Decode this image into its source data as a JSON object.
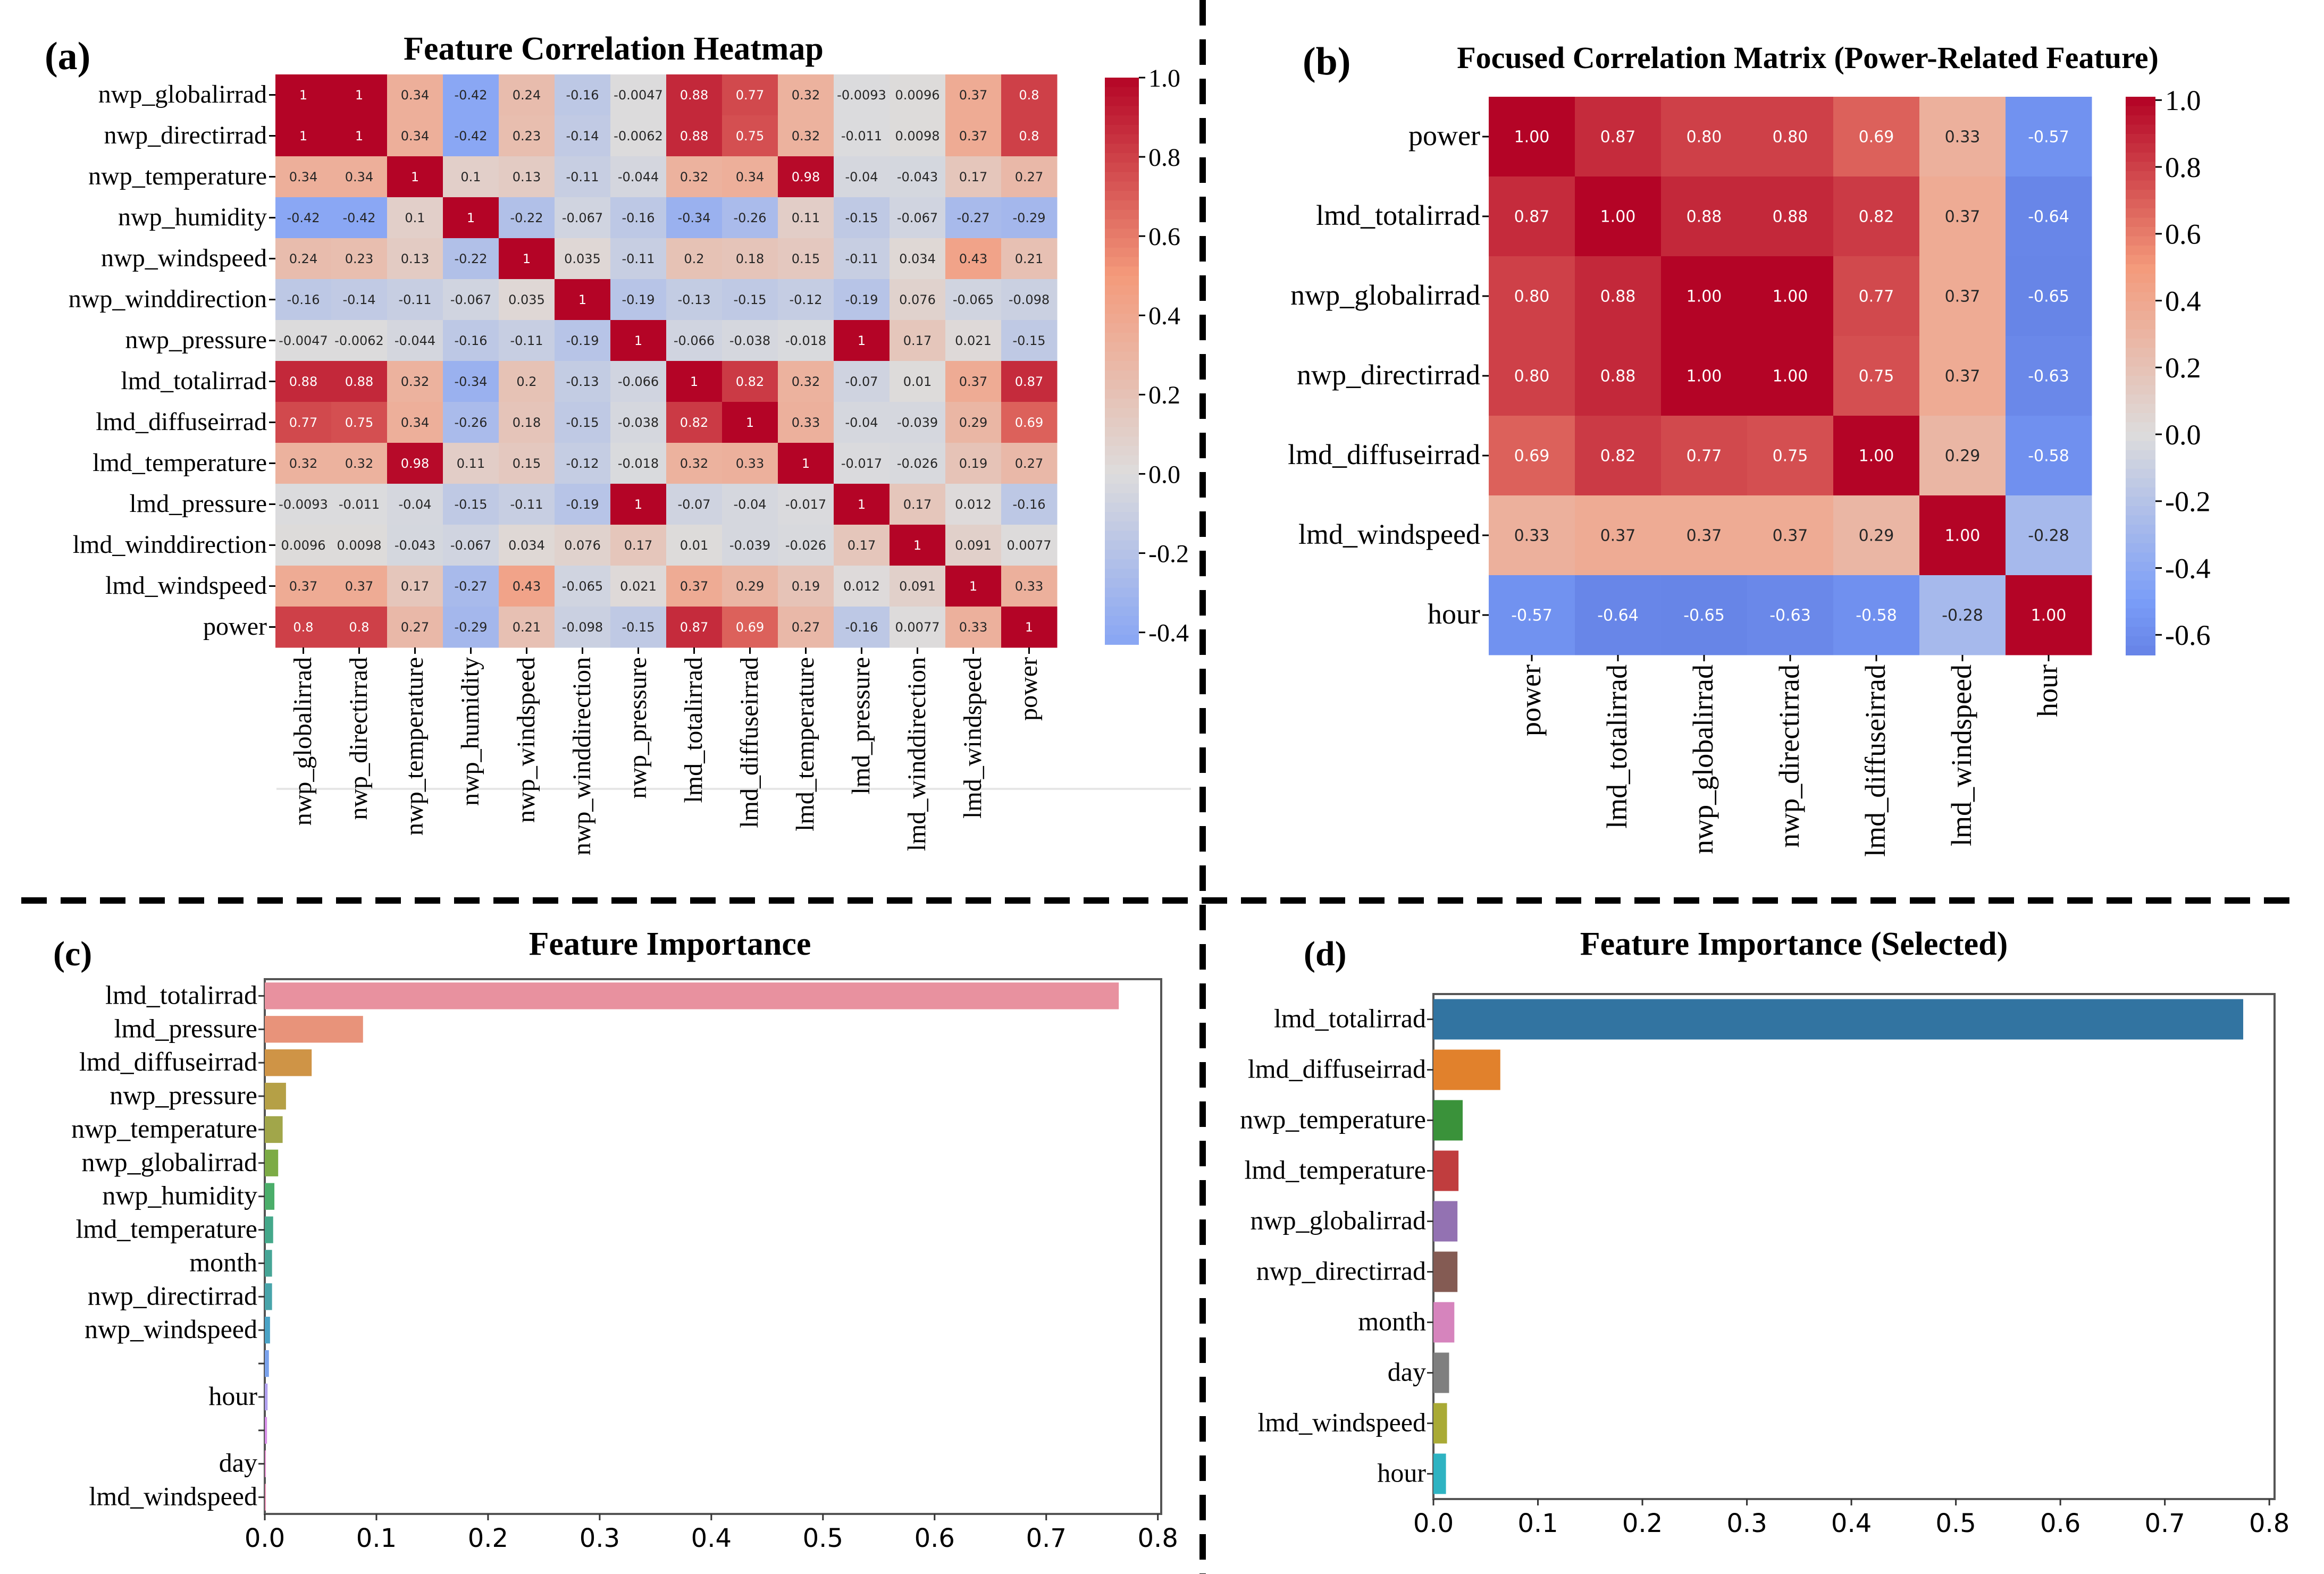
{
  "chart_data": [
    {
      "panel_label": "(a)",
      "type": "heatmap",
      "title": "Feature Correlation Heatmap",
      "rows": [
        "nwp_globalirrad",
        "nwp_directirrad",
        "nwp_temperature",
        "nwp_humidity",
        "nwp_windspeed",
        "nwp_winddirection",
        "nwp_pressure",
        "lmd_totalirrad",
        "lmd_diffuseirrad",
        "lmd_temperature",
        "lmd_pressure",
        "lmd_winddirection",
        "lmd_windspeed",
        "power"
      ],
      "cols": [
        "nwp_globalirrad",
        "nwp_directirrad",
        "nwp_temperature",
        "nwp_humidity",
        "nwp_windspeed",
        "nwp_winddirection",
        "nwp_pressure",
        "lmd_totalirrad",
        "lmd_diffuseirrad",
        "lmd_temperature",
        "lmd_pressure",
        "lmd_winddirection",
        "lmd_windspeed",
        "power"
      ],
      "values": [
        [
          "1",
          "1",
          "0.34",
          "-0.42",
          "0.24",
          "-0.16",
          "-0.0047",
          "0.88",
          "0.77",
          "0.32",
          "-0.0093",
          "0.0096",
          "0.37",
          "0.8"
        ],
        [
          "1",
          "1",
          "0.34",
          "-0.42",
          "0.23",
          "-0.14",
          "-0.0062",
          "0.88",
          "0.75",
          "0.32",
          "-0.011",
          "0.0098",
          "0.37",
          "0.8"
        ],
        [
          "0.34",
          "0.34",
          "1",
          "0.1",
          "0.13",
          "-0.11",
          "-0.044",
          "0.32",
          "0.34",
          "0.98",
          "-0.04",
          "-0.043",
          "0.17",
          "0.27"
        ],
        [
          "-0.42",
          "-0.42",
          "0.1",
          "1",
          "-0.22",
          "-0.067",
          "-0.16",
          "-0.34",
          "-0.26",
          "0.11",
          "-0.15",
          "-0.067",
          "-0.27",
          "-0.29"
        ],
        [
          "0.24",
          "0.23",
          "0.13",
          "-0.22",
          "1",
          "0.035",
          "-0.11",
          "0.2",
          "0.18",
          "0.15",
          "-0.11",
          "0.034",
          "0.43",
          "0.21"
        ],
        [
          "-0.16",
          "-0.14",
          "-0.11",
          "-0.067",
          "0.035",
          "1",
          "-0.19",
          "-0.13",
          "-0.15",
          "-0.12",
          "-0.19",
          "0.076",
          "-0.065",
          "-0.098"
        ],
        [
          "-0.0047",
          "-0.0062",
          "-0.044",
          "-0.16",
          "-0.11",
          "-0.19",
          "1",
          "-0.066",
          "-0.038",
          "-0.018",
          "1",
          "0.17",
          "0.021",
          "-0.15"
        ],
        [
          "0.88",
          "0.88",
          "0.32",
          "-0.34",
          "0.2",
          "-0.13",
          "-0.066",
          "1",
          "0.82",
          "0.32",
          "-0.07",
          "0.01",
          "0.37",
          "0.87"
        ],
        [
          "0.77",
          "0.75",
          "0.34",
          "-0.26",
          "0.18",
          "-0.15",
          "-0.038",
          "0.82",
          "1",
          "0.33",
          "-0.04",
          "-0.039",
          "0.29",
          "0.69"
        ],
        [
          "0.32",
          "0.32",
          "0.98",
          "0.11",
          "0.15",
          "-0.12",
          "-0.018",
          "0.32",
          "0.33",
          "1",
          "-0.017",
          "-0.026",
          "0.19",
          "0.27"
        ],
        [
          "-0.0093",
          "-0.011",
          "-0.04",
          "-0.15",
          "-0.11",
          "-0.19",
          "1",
          "-0.07",
          "-0.04",
          "-0.017",
          "1",
          "0.17",
          "0.012",
          "-0.16"
        ],
        [
          "0.0096",
          "0.0098",
          "-0.043",
          "-0.067",
          "0.034",
          "0.076",
          "0.17",
          "0.01",
          "-0.039",
          "-0.026",
          "0.17",
          "1",
          "0.091",
          "0.0077"
        ],
        [
          "0.37",
          "0.37",
          "0.17",
          "-0.27",
          "0.43",
          "-0.065",
          "0.021",
          "0.37",
          "0.29",
          "0.19",
          "0.012",
          "0.091",
          "1",
          "0.33"
        ],
        [
          "0.8",
          "0.8",
          "0.27",
          "-0.29",
          "0.21",
          "-0.098",
          "-0.15",
          "0.87",
          "0.69",
          "0.27",
          "-0.16",
          "0.0077",
          "0.33",
          "1"
        ]
      ],
      "colorbar": {
        "vmin": -0.43,
        "vmax": 1.0,
        "ticks": [
          "1.0",
          "0.8",
          "0.6",
          "0.4",
          "0.2",
          "0.0",
          "-0.2",
          "-0.4"
        ]
      }
    },
    {
      "panel_label": "(b)",
      "type": "heatmap",
      "title": "Focused Correlation Matrix (Power-Related Feature)",
      "rows": [
        "power",
        "lmd_totalirrad",
        "nwp_globalirrad",
        "nwp_directirrad",
        "lmd_diffuseirrad",
        "lmd_windspeed",
        "hour"
      ],
      "cols": [
        "power",
        "lmd_totalirrad",
        "nwp_globalirrad",
        "nwp_directirrad",
        "lmd_diffuseirrad",
        "lmd_windspeed",
        "hour"
      ],
      "values": [
        [
          "1.00",
          "0.87",
          "0.80",
          "0.80",
          "0.69",
          "0.33",
          "-0.57"
        ],
        [
          "0.87",
          "1.00",
          "0.88",
          "0.88",
          "0.82",
          "0.37",
          "-0.64"
        ],
        [
          "0.80",
          "0.88",
          "1.00",
          "1.00",
          "0.77",
          "0.37",
          "-0.65"
        ],
        [
          "0.80",
          "0.88",
          "1.00",
          "1.00",
          "0.75",
          "0.37",
          "-0.63"
        ],
        [
          "0.69",
          "0.82",
          "0.77",
          "0.75",
          "1.00",
          "0.29",
          "-0.58"
        ],
        [
          "0.33",
          "0.37",
          "0.37",
          "0.37",
          "0.29",
          "1.00",
          "-0.28"
        ],
        [
          "-0.57",
          "-0.64",
          "-0.65",
          "-0.63",
          "-0.58",
          "-0.28",
          "1.00"
        ]
      ],
      "colorbar": {
        "vmin": -0.66,
        "vmax": 1.01,
        "ticks": [
          "1.0",
          "0.8",
          "0.6",
          "0.4",
          "0.2",
          "0.0",
          "-0.2",
          "-0.4",
          "-0.6"
        ]
      }
    },
    {
      "panel_label": "(c)",
      "type": "bar",
      "orientation": "horizontal",
      "title": "Feature Importance",
      "categories": [
        "lmd_totalirrad",
        "lmd_pressure",
        "lmd_diffuseirrad",
        "nwp_pressure",
        "nwp_temperature",
        "nwp_globalirrad",
        "nwp_humidity",
        "lmd_temperature",
        "month",
        "nwp_directirrad",
        "nwp_windspeed",
        "",
        "hour",
        "",
        "day",
        "lmd_windspeed"
      ],
      "values": [
        0.765,
        0.088,
        0.042,
        0.019,
        0.016,
        0.012,
        0.0086,
        0.0075,
        0.0065,
        0.0065,
        0.0047,
        0.0037,
        0.0025,
        0.002,
        0.001,
        0.001
      ],
      "colors": [
        "#e8919f",
        "#e8937a",
        "#cf9446",
        "#b5a046",
        "#a1a64a",
        "#7cab45",
        "#4bae6a",
        "#44a88a",
        "#46a596",
        "#48a4aa",
        "#4aa3c6",
        "#7aa2ec",
        "#b0a0f0",
        "#d78ee8",
        "#e08ac8",
        "#e58caf"
      ],
      "xlim": [
        0,
        0.803
      ],
      "xticks": [
        "0.0",
        "0.1",
        "0.2",
        "0.3",
        "0.4",
        "0.5",
        "0.6",
        "0.7",
        "0.8"
      ]
    },
    {
      "panel_label": "(d)",
      "type": "bar",
      "orientation": "horizontal",
      "title": "Feature Importance (Selected)",
      "categories": [
        "lmd_totalirrad",
        "lmd_diffuseirrad",
        "nwp_temperature",
        "lmd_temperature",
        "nwp_globalirrad",
        "nwp_directirrad",
        "month",
        "day",
        "lmd_windspeed",
        "hour"
      ],
      "values": [
        0.775,
        0.064,
        0.028,
        0.024,
        0.023,
        0.023,
        0.02,
        0.015,
        0.013,
        0.012
      ],
      "colors": [
        "#3274a1",
        "#e1812c",
        "#3a923a",
        "#c03d3e",
        "#9372b2",
        "#845b53",
        "#d684bd",
        "#7f7f7f",
        "#a9aa35",
        "#2eb3c2"
      ],
      "xlim": [
        0,
        0.805
      ],
      "xticks": [
        "0.0",
        "0.1",
        "0.2",
        "0.3",
        "0.4",
        "0.5",
        "0.6",
        "0.7",
        "0.8"
      ]
    }
  ]
}
